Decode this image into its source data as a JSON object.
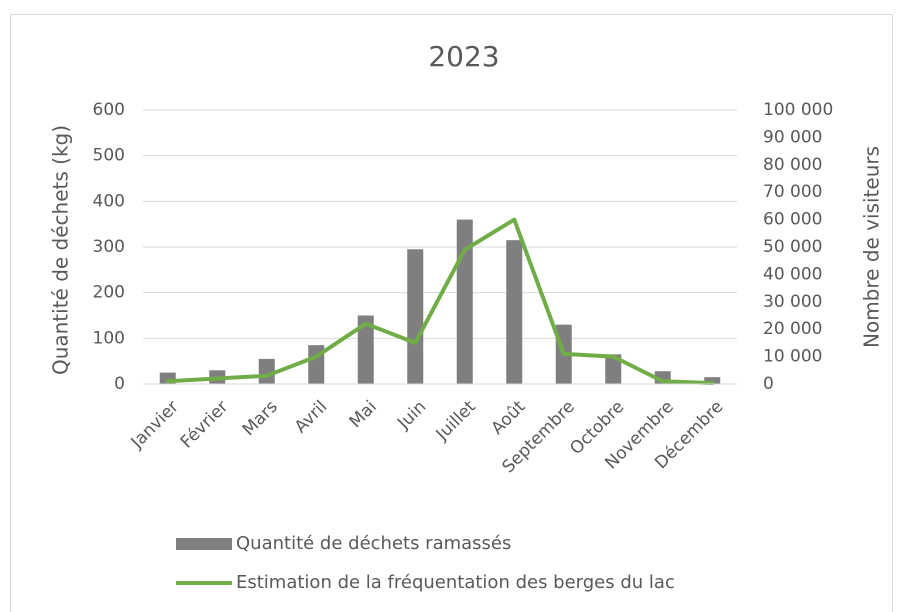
{
  "chart_data": {
    "type": "bar_line",
    "title": "2023",
    "ylabel": "Quantité de déchets (kg)",
    "y2label": "Nombre de visiteurs",
    "categories": [
      "Janvier",
      "Février",
      "Mars",
      "Avril",
      "Mai",
      "Juin",
      "Juillet",
      "Août",
      "Septembre",
      "Octobre",
      "Novembre",
      "Décembre"
    ],
    "series": [
      {
        "name": "Quantité de déchets ramassés",
        "type": "bar",
        "color": "#7f7f7f",
        "values": [
          25,
          30,
          55,
          85,
          150,
          295,
          360,
          315,
          130,
          65,
          28,
          15
        ]
      },
      {
        "name": "Estimation de la fréquentation des berges du lac",
        "type": "line",
        "axis": "y2",
        "color": "#70ad47",
        "values": [
          1000,
          2000,
          3000,
          10000,
          22000,
          15000,
          49000,
          60000,
          11000,
          10000,
          1000,
          300
        ]
      }
    ],
    "ylim": [
      0,
      600
    ],
    "yticks": [
      0,
      100,
      200,
      300,
      400,
      500,
      600
    ],
    "y2lim": [
      0,
      100000
    ],
    "y2ticks": [
      0,
      {
        "value": 10000,
        "label": "10 000"
      },
      {
        "value": 20000,
        "label": "20 000"
      },
      {
        "value": 30000,
        "label": "30 000"
      },
      {
        "value": 40000,
        "label": "40 000"
      },
      {
        "value": 50000,
        "label": "50 000"
      },
      {
        "value": 60000,
        "label": "60 000"
      },
      {
        "value": 70000,
        "label": "70 000"
      },
      {
        "value": 80000,
        "label": "80 000"
      },
      {
        "value": 90000,
        "label": "90 000"
      },
      {
        "value": 100000,
        "label": "100 000"
      }
    ],
    "grid": true,
    "legend": "bottom"
  }
}
